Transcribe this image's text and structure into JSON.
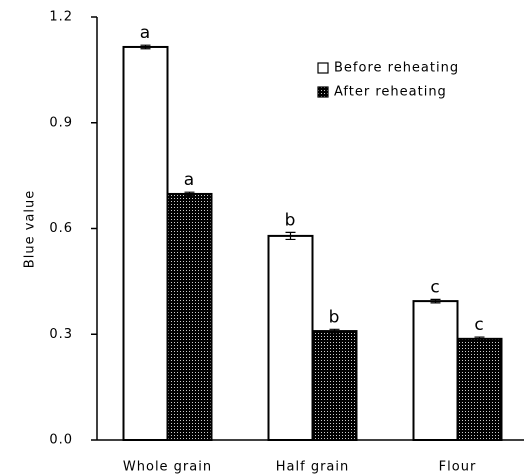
{
  "chart_data": {
    "type": "bar",
    "categories": [
      "Whole grain",
      "Half grain",
      "Flour"
    ],
    "y_label": "Blue value",
    "series": [
      {
        "name": "Before reheating",
        "color": "#ffffff",
        "values": [
          1.115,
          0.579,
          0.394
        ],
        "errors": [
          0.005,
          0.01,
          0.005
        ],
        "annotations": [
          "a",
          "b",
          "c"
        ]
      },
      {
        "name": "After reheating",
        "color": "#7a7a7a",
        "values": [
          0.698,
          0.309,
          0.287
        ],
        "errors": [
          0.005,
          0.005,
          0.005
        ],
        "annotations": [
          "a",
          "b",
          "c"
        ]
      }
    ],
    "ylim": [
      0,
      1.2
    ],
    "yticks": [
      {
        "value": 0,
        "label": "0.0"
      },
      0.3,
      0.6,
      0.9,
      1.2
    ],
    "legend": "upper right"
  }
}
